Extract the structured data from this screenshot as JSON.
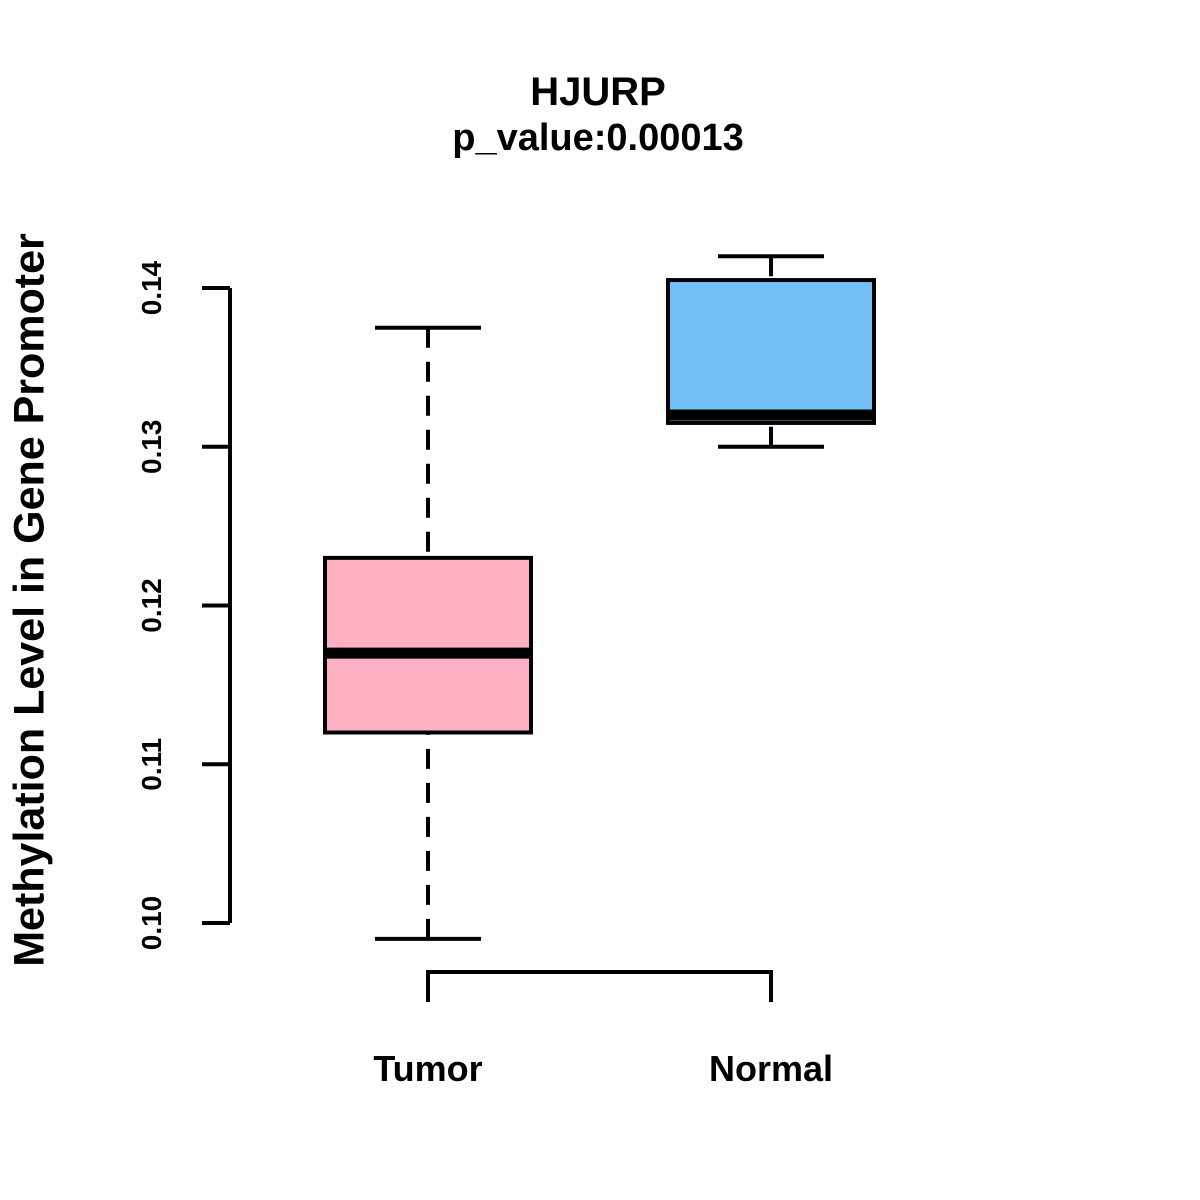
{
  "chart_data": {
    "type": "boxplot",
    "title": "HJURP",
    "subtitle": "p_value:0.00013",
    "ylabel": "Methylation Level in Gene Promoter",
    "xlabel": "",
    "categories": [
      "Tumor",
      "Normal"
    ],
    "series": [
      {
        "name": "Tumor",
        "lower_whisker": 0.099,
        "q1": 0.112,
        "median": 0.117,
        "q3": 0.123,
        "upper_whisker": 0.1375,
        "fill_color": "#FFB1C3"
      },
      {
        "name": "Normal",
        "lower_whisker": 0.13,
        "q1": 0.1315,
        "median": 0.132,
        "q3": 0.1405,
        "upper_whisker": 0.142,
        "fill_color": "#74BFF8"
      }
    ],
    "y_axis": {
      "ticks": [
        0.1,
        0.11,
        0.12,
        0.13,
        0.14
      ],
      "tick_labels": [
        "0.10",
        "0.11",
        "0.12",
        "0.13",
        "0.14"
      ],
      "axis_span": [
        0.1,
        0.14
      ],
      "tick_label_rotation_deg": -90
    },
    "grid": false,
    "legend": false
  },
  "colors": {
    "stroke": "#000000",
    "text": "#000000",
    "background": "#FFFFFF"
  }
}
